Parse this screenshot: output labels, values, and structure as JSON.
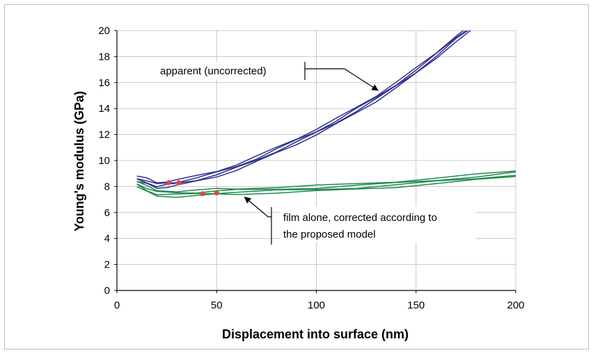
{
  "chart_data": {
    "type": "line",
    "title": "",
    "xlabel": "Displacement into surface (nm)",
    "ylabel": "Young's modulus (GPa)",
    "xlim": [
      0,
      200
    ],
    "ylim": [
      0,
      20
    ],
    "xticks": [
      0,
      50,
      100,
      150,
      200
    ],
    "yticks": [
      0,
      2,
      4,
      6,
      8,
      10,
      12,
      14,
      16,
      18,
      20
    ],
    "grid": true,
    "legend": "none",
    "series": [
      {
        "color": "#2e2e8c",
        "x": [
          10,
          15,
          20,
          25,
          30,
          40,
          50,
          60,
          70,
          80,
          90,
          100,
          110,
          120,
          130,
          140,
          150,
          160,
          170,
          180
        ],
        "y": [
          8.6,
          8.4,
          8.1,
          8.2,
          8.3,
          8.6,
          9.0,
          9.5,
          10.1,
          10.8,
          11.5,
          12.2,
          13.0,
          13.9,
          14.8,
          15.8,
          16.9,
          18.1,
          19.4,
          20.5
        ]
      },
      {
        "color": "#1f8a4c",
        "x": [
          10,
          15,
          20,
          30,
          40,
          50,
          60,
          80,
          100,
          120,
          140,
          160,
          180,
          200
        ],
        "y": [
          8.2,
          7.8,
          7.5,
          7.45,
          7.5,
          7.6,
          7.65,
          7.75,
          7.85,
          8.0,
          8.2,
          8.45,
          8.7,
          9.0
        ]
      }
    ],
    "markers": [
      {
        "x": 26,
        "y": 8.3,
        "color": "#e8413c"
      },
      {
        "x": 31,
        "y": 8.3,
        "color": "#e8413c"
      },
      {
        "x": 43,
        "y": 7.45,
        "color": "#e8413c"
      },
      {
        "x": 50,
        "y": 7.5,
        "color": "#e8413c"
      }
    ],
    "annotations": [
      {
        "text": "apparent (uncorrected)",
        "target": {
          "x": 133,
          "y": 15.5
        }
      },
      {
        "text_lines": [
          "film alone, corrected according to",
          "the proposed model"
        ],
        "target": {
          "x": 63,
          "y": 7.4
        }
      }
    ]
  }
}
